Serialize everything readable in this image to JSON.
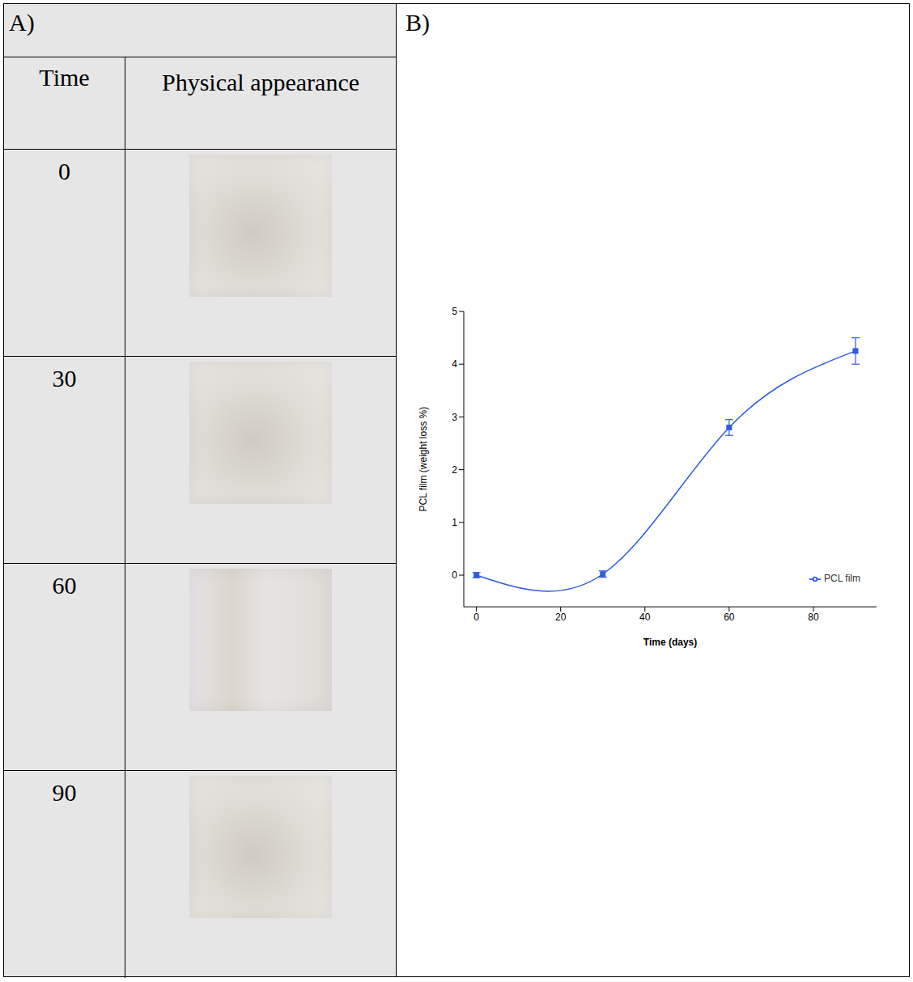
{
  "table": {
    "panel": "A)",
    "columns": [
      "Time",
      "Physical appearance"
    ],
    "times": [
      0,
      30,
      60,
      90
    ]
  },
  "chart_data": {
    "panel": "B)",
    "type": "line",
    "x_label": "Time (days)",
    "y_label": "PCL film (weight loss %)",
    "x": [
      0,
      30,
      60,
      90
    ],
    "series": [
      {
        "name": "PCL film",
        "color": "#2f5be0",
        "values": [
          0,
          0.02,
          2.8,
          4.25
        ],
        "errors": [
          0.05,
          0.06,
          0.15,
          0.25
        ],
        "marker": "square",
        "line_style": "smooth"
      }
    ],
    "xlim": [
      -3,
      95
    ],
    "xticks": [
      0,
      20,
      40,
      60,
      80
    ],
    "ylim": [
      -0.6,
      5
    ],
    "yticks": [
      0,
      1,
      2,
      3,
      4,
      5
    ],
    "legend": "lower right",
    "grid": false
  }
}
